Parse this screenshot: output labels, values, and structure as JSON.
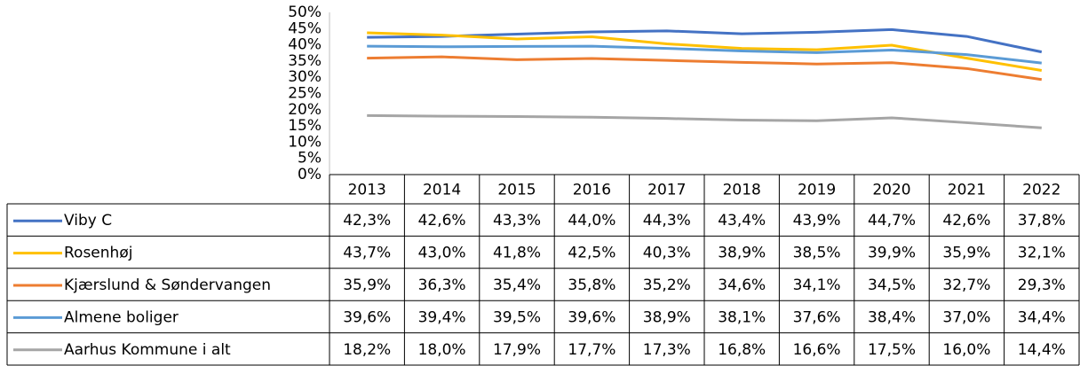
{
  "chart_data": {
    "type": "line",
    "categories": [
      "2013",
      "2014",
      "2015",
      "2016",
      "2017",
      "2018",
      "2019",
      "2020",
      "2021",
      "2022"
    ],
    "series": [
      {
        "name": "Viby C",
        "color": "#4472c4",
        "values": [
          42.3,
          42.6,
          43.3,
          44.0,
          44.3,
          43.4,
          43.9,
          44.7,
          42.6,
          37.8
        ],
        "value_labels": [
          "42,3%",
          "42,6%",
          "43,3%",
          "44,0%",
          "44,3%",
          "43,4%",
          "43,9%",
          "44,7%",
          "42,6%",
          "37,8%"
        ]
      },
      {
        "name": "Rosenhøj",
        "color": "#ffc000",
        "values": [
          43.7,
          43.0,
          41.8,
          42.5,
          40.3,
          38.9,
          38.5,
          39.9,
          35.9,
          32.1
        ],
        "value_labels": [
          "43,7%",
          "43,0%",
          "41,8%",
          "42,5%",
          "40,3%",
          "38,9%",
          "38,5%",
          "39,9%",
          "35,9%",
          "32,1%"
        ]
      },
      {
        "name": "Kjærslund & Søndervangen",
        "color": "#ed7d31",
        "values": [
          35.9,
          36.3,
          35.4,
          35.8,
          35.2,
          34.6,
          34.1,
          34.5,
          32.7,
          29.3
        ],
        "value_labels": [
          "35,9%",
          "36,3%",
          "35,4%",
          "35,8%",
          "35,2%",
          "34,6%",
          "34,1%",
          "34,5%",
          "32,7%",
          "29,3%"
        ]
      },
      {
        "name": "Almene boliger",
        "color": "#5b9bd5",
        "values": [
          39.6,
          39.4,
          39.5,
          39.6,
          38.9,
          38.1,
          37.6,
          38.4,
          37.0,
          34.4
        ],
        "value_labels": [
          "39,6%",
          "39,4%",
          "39,5%",
          "39,6%",
          "38,9%",
          "38,1%",
          "37,6%",
          "38,4%",
          "37,0%",
          "34,4%"
        ]
      },
      {
        "name": "Aarhus Kommune i alt",
        "color": "#a5a5a5",
        "values": [
          18.2,
          18.0,
          17.9,
          17.7,
          17.3,
          16.8,
          16.6,
          17.5,
          16.0,
          14.4
        ],
        "value_labels": [
          "18,2%",
          "18,0%",
          "17,9%",
          "17,7%",
          "17,3%",
          "16,8%",
          "16,6%",
          "17,5%",
          "16,0%",
          "14,4%"
        ]
      }
    ],
    "ylim": [
      0,
      50
    ],
    "yticks": [
      {
        "value": 0,
        "label": "0%"
      },
      {
        "value": 5,
        "label": "5%"
      },
      {
        "value": 10,
        "label": "10%"
      },
      {
        "value": 15,
        "label": "15%"
      },
      {
        "value": 20,
        "label": "20%"
      },
      {
        "value": 25,
        "label": "25%"
      },
      {
        "value": 30,
        "label": "30%"
      },
      {
        "value": 35,
        "label": "35%"
      },
      {
        "value": 40,
        "label": "40%"
      },
      {
        "value": 45,
        "label": "45%"
      },
      {
        "value": 50,
        "label": "50%"
      }
    ]
  }
}
